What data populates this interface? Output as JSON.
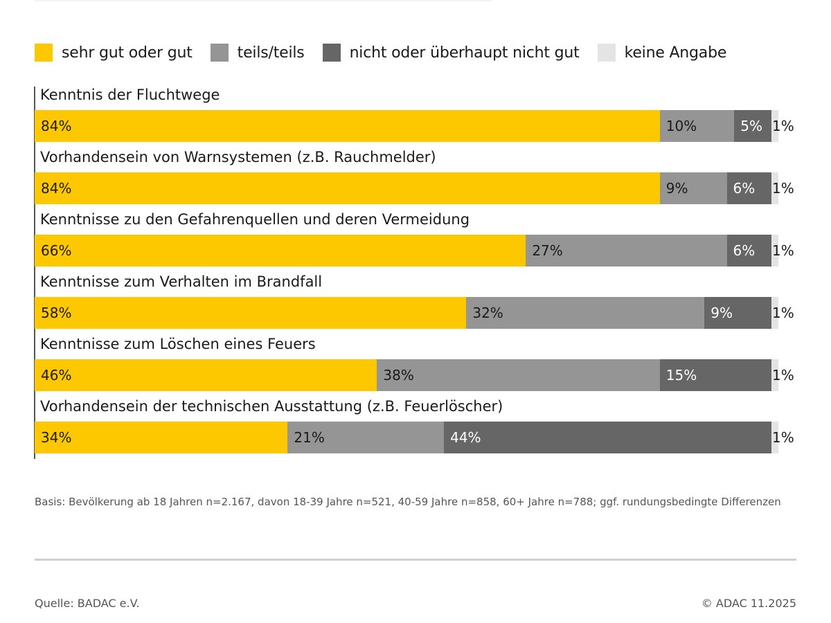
{
  "chart_data": {
    "type": "bar",
    "orientation": "horizontal",
    "stacked": true,
    "title": "",
    "xlabel": "",
    "ylabel": "",
    "xlim": [
      0,
      100
    ],
    "grid": false,
    "legend_position": "top-left",
    "categories": [
      "Kenntnis der Fluchtwege",
      "Vorhandensein von Warnsystemen (z.B. Rauchmelder)",
      "Kenntnisse zu den Gefahrenquellen und deren Vermeidung",
      "Kenntnisse zum Verhalten im Brandfall",
      "Kenntnisse zum Löschen eines Feuers",
      "Vorhandensein der technischen Ausstattung (z.B. Feuerlöscher)"
    ],
    "series": [
      {
        "name": "sehr gut oder gut",
        "color": "#fdc800",
        "label_color": "#1a1a1a",
        "values": [
          84,
          84,
          66,
          58,
          46,
          34
        ]
      },
      {
        "name": "teils/teils",
        "color": "#959595",
        "label_color": "#1a1a1a",
        "values": [
          10,
          9,
          27,
          32,
          38,
          21
        ]
      },
      {
        "name": "nicht oder überhaupt nicht gut",
        "color": "#666666",
        "label_color": "#ffffff",
        "values": [
          5,
          6,
          6,
          9,
          15,
          44
        ]
      },
      {
        "name": "keine Angabe",
        "color": "#e4e4e4",
        "label_color": "#1a1a1a",
        "values": [
          1,
          1,
          1,
          1,
          1,
          1
        ]
      }
    ],
    "value_suffix": "%"
  },
  "footer": {
    "note": "Basis: Bevölkerung ab 18 Jahren n=2.167, davon 18-39 Jahre n=521, 40-59 Jahre n=858, 60+ Jahre n=788; ggf. rundungsbedingte Differenzen",
    "source": "Quelle: BADAC e.V.",
    "copyright": "© ADAC 11.2025"
  }
}
